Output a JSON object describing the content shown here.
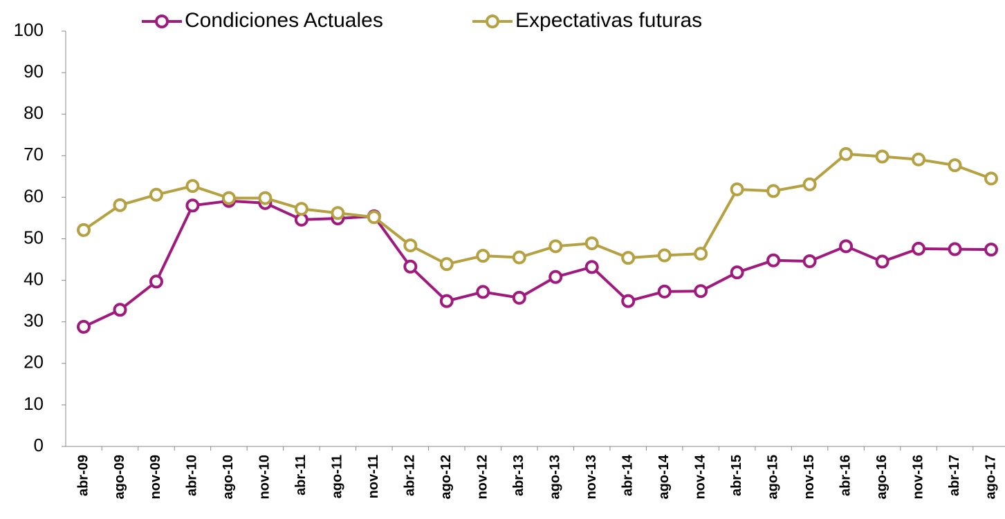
{
  "chart_data": {
    "type": "line",
    "categories": [
      "abr-09",
      "ago-09",
      "nov-09",
      "abr-10",
      "ago-10",
      "nov-10",
      "abr-11",
      "ago-11",
      "nov-11",
      "abr-12",
      "ago-12",
      "nov-12",
      "abr-13",
      "ago-13",
      "nov-13",
      "abr-14",
      "ago-14",
      "nov-14",
      "abr-15",
      "ago-15",
      "nov-15",
      "abr-16",
      "ago-16",
      "nov-16",
      "abr-17",
      "ago-17"
    ],
    "series": [
      {
        "name": "Condiciones Actuales",
        "color": "#a0197d",
        "values": [
          28.8,
          32.9,
          39.7,
          58.0,
          59.1,
          58.6,
          54.6,
          54.9,
          55.4,
          43.3,
          35.0,
          37.2,
          35.8,
          40.8,
          43.2,
          35.0,
          37.3,
          37.4,
          41.9,
          44.8,
          44.6,
          48.2,
          44.5,
          47.6,
          47.5,
          47.4
        ]
      },
      {
        "name": "Expectativas futuras",
        "color": "#b5a142",
        "values": [
          52.1,
          58.1,
          60.6,
          62.7,
          59.8,
          59.8,
          57.2,
          56.2,
          55.2,
          48.4,
          43.9,
          45.9,
          45.5,
          48.2,
          48.9,
          45.4,
          46.0,
          46.4,
          61.9,
          61.5,
          63.1,
          70.4,
          69.8,
          69.1,
          67.7,
          64.5
        ]
      }
    ],
    "ylim": [
      0,
      100
    ],
    "yticks": [
      0,
      10,
      20,
      30,
      40,
      50,
      60,
      70,
      80,
      90,
      100
    ],
    "legend": "top"
  }
}
